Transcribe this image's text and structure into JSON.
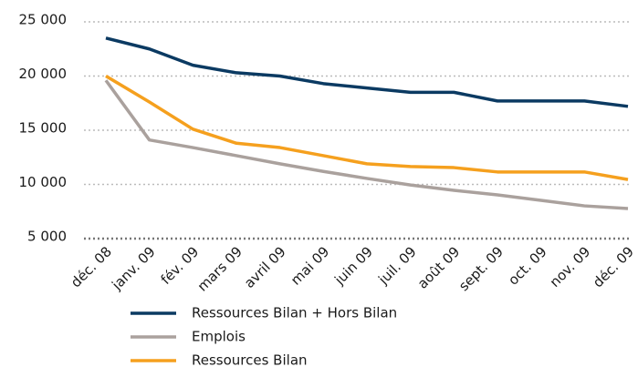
{
  "chart_data": {
    "type": "line",
    "categories": [
      "déc. 08",
      "janv. 09",
      "fév. 09",
      "mars 09",
      "avril 09",
      "mai 09",
      "juin 09",
      "juil. 09",
      "août 09",
      "sept. 09",
      "oct. 09",
      "nov. 09",
      "déc. 09"
    ],
    "series": [
      {
        "name": "Ressources Bilan + Hors Bilan",
        "color": "#0b3a62",
        "values": [
          23500,
          22500,
          21000,
          20300,
          20000,
          19300,
          18900,
          18500,
          18500,
          17700,
          17700,
          17700,
          17200
        ]
      },
      {
        "name": "Emplois",
        "color": "#aaa19d",
        "values": [
          19600,
          14100,
          13400,
          12650,
          11900,
          11200,
          10550,
          9950,
          9450,
          9030,
          8530,
          8020,
          7770
        ]
      },
      {
        "name": "Ressources Bilan",
        "color": "#f5a01e",
        "values": [
          20000,
          17600,
          15100,
          13800,
          13400,
          12650,
          11900,
          11650,
          11550,
          11150,
          11150,
          11150,
          10450
        ]
      }
    ],
    "ylim": [
      5000,
      25000
    ],
    "yticks": [
      {
        "value": 5000,
        "label": "5 000"
      },
      {
        "value": 10000,
        "label": "10 000"
      },
      {
        "value": 15000,
        "label": "15 000"
      },
      {
        "value": 20000,
        "label": "20 000"
      },
      {
        "value": 25000,
        "label": "25 000"
      }
    ],
    "grid": true
  }
}
